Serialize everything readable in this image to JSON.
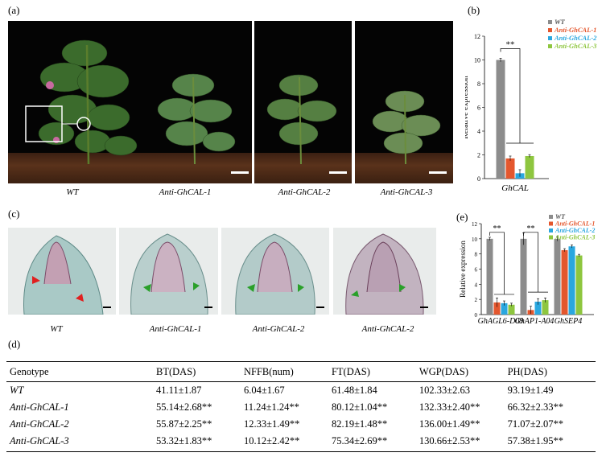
{
  "panel_labels": {
    "a": "(a)",
    "b": "(b)",
    "c": "(c)",
    "d": "(d)",
    "e": "(e)"
  },
  "panel_a": {
    "captions": [
      "WT",
      "Anti-GhCAL-1",
      "Anti-GhCAL-2",
      "Anti-GhCAL-3"
    ]
  },
  "panel_c": {
    "captions": [
      "WT",
      "Anti-GhCAL-1",
      "Anti-GhCAL-2",
      "Anti-GhCAL-2"
    ]
  },
  "chart_data": [
    {
      "id": "b",
      "type": "bar",
      "categories": [
        "GhCAL"
      ],
      "xlabel": "GhCAL",
      "ylabel": "Relative expression",
      "ylim": [
        0,
        12
      ],
      "yticks": [
        0,
        2,
        4,
        6,
        8,
        10,
        12
      ],
      "series": [
        {
          "name": "WT",
          "values": [
            10.0
          ],
          "err": [
            0.15
          ],
          "color": "#8c8c8c"
        },
        {
          "name": "Anti-GhCAL-1",
          "values": [
            1.7
          ],
          "err": [
            0.2
          ],
          "color": "#e4572e"
        },
        {
          "name": "Anti-GhCAL-2",
          "values": [
            0.45
          ],
          "err": [
            0.3
          ],
          "color": "#2aa7df"
        },
        {
          "name": "Anti-GhCAL-3",
          "values": [
            1.9
          ],
          "err": [
            0.12
          ],
          "color": "#8ec63f"
        }
      ],
      "significance": "**",
      "legend_position": "top-right"
    },
    {
      "id": "e",
      "type": "bar",
      "categories": [
        "GhAGL6-D09",
        "GhAP1-A04",
        "GhSEP4"
      ],
      "ylabel": "Relative expression",
      "ylim": [
        0,
        12
      ],
      "yticks": [
        0,
        2,
        4,
        6,
        8,
        10,
        12
      ],
      "series": [
        {
          "name": "WT",
          "values": [
            10.0,
            10.0,
            10.0
          ],
          "err": [
            0.2,
            0.8,
            0.3
          ],
          "color": "#8c8c8c"
        },
        {
          "name": "Anti-GhCAL-1",
          "values": [
            1.6,
            0.6,
            8.5
          ],
          "err": [
            0.6,
            0.5,
            0.2
          ],
          "color": "#e4572e"
        },
        {
          "name": "Anti-GhCAL-2",
          "values": [
            1.5,
            1.7,
            9.0
          ],
          "err": [
            0.3,
            0.4,
            0.2
          ],
          "color": "#2aa7df"
        },
        {
          "name": "Anti-GhCAL-3",
          "values": [
            1.3,
            1.9,
            7.8
          ],
          "err": [
            0.2,
            0.3,
            0.15
          ],
          "color": "#8ec63f"
        }
      ],
      "significance": [
        "**",
        "**"
      ],
      "legend_position": "top-right"
    },
    {
      "id": "d",
      "type": "table",
      "columns": [
        "Genotype",
        "BT(DAS)",
        "NFFB(num)",
        "FT(DAS)",
        "WGP(DAS)",
        "PH(DAS)"
      ],
      "rows": [
        [
          "WT",
          "41.11±1.87",
          "6.04±1.67",
          "61.48±1.84",
          "102.33±2.63",
          "93.19±1.49"
        ],
        [
          "Anti-GhCAL-1",
          "55.14±2.68**",
          "11.24±1.24**",
          "80.12±1.04**",
          "132.33±2.40**",
          "66.32±2.33**"
        ],
        [
          "Anti-GhCAL-2",
          "55.87±2.25**",
          "12.33±1.49**",
          "82.19±1.48**",
          "136.00±1.49**",
          "71.07±2.07**"
        ],
        [
          "Anti-GhCAL-3",
          "53.32±1.83**",
          "10.12±2.42**",
          "75.34±2.69**",
          "130.66±2.53**",
          "57.38±1.95**"
        ]
      ]
    }
  ]
}
